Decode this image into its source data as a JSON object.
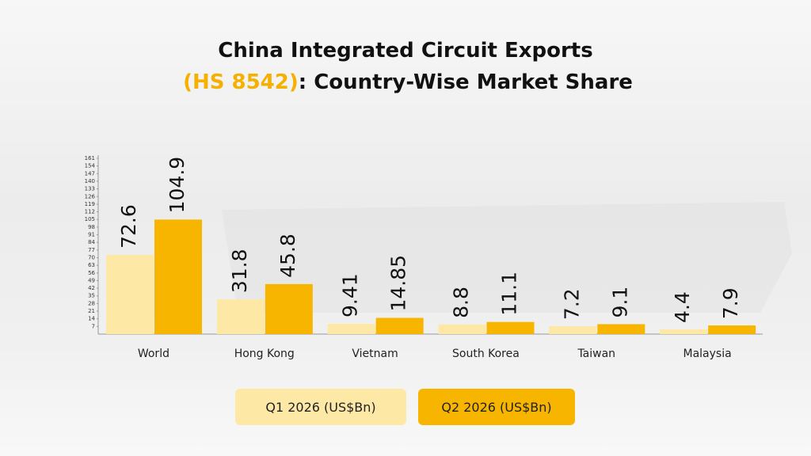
{
  "chart_data": {
    "type": "bar",
    "title": "China Integrated Circuit Exports",
    "title_code": "(HS 8542)",
    "title_rest": ": Country-Wise Market Share",
    "categories": [
      "World",
      "Hong Kong",
      "Vietnam",
      "South Korea",
      "Taiwan",
      "Malaysia"
    ],
    "series": [
      {
        "name": "Q1 2026 (US$Bn)",
        "color": "#fde8a6",
        "values": [
          72.6,
          31.8,
          9.41,
          8.8,
          7.2,
          4.4
        ]
      },
      {
        "name": "Q2 2026 (US$Bn)",
        "color": "#f7b500",
        "values": [
          104.9,
          45.8,
          14.85,
          11.1,
          9.1,
          7.9
        ]
      }
    ],
    "ylim": [
      0,
      161
    ],
    "yticks": [
      7,
      14,
      21,
      28,
      35,
      42,
      49,
      56,
      63,
      70,
      77,
      84,
      91,
      98,
      105,
      112,
      119,
      126,
      133,
      140,
      147,
      154,
      161
    ],
    "title_code_color": "#f5b000"
  }
}
